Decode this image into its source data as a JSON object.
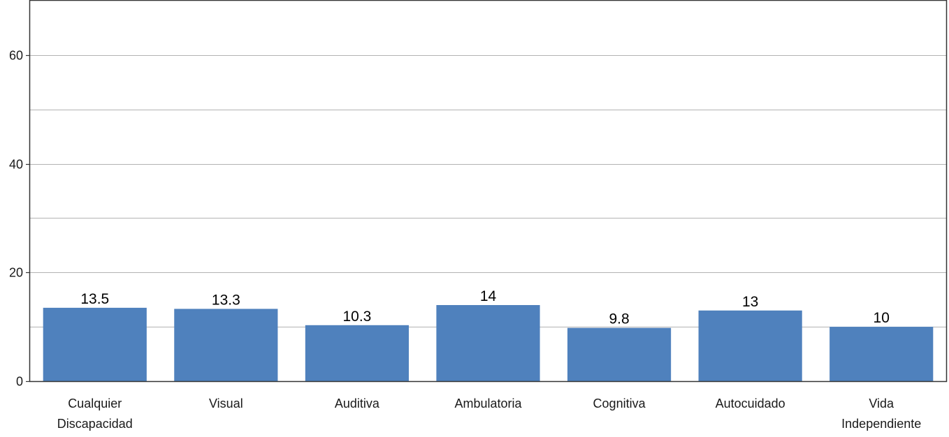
{
  "chart_data": {
    "type": "bar",
    "title": "",
    "xlabel": "",
    "ylabel": "",
    "ylim": [
      0,
      70
    ],
    "yticks": [
      0,
      20,
      40,
      60
    ],
    "gridlines": [
      10,
      20,
      30,
      40,
      50,
      60
    ],
    "grid": "horizontal",
    "categories": [
      [
        "Cualquier",
        "Discapacidad"
      ],
      [
        "Visual"
      ],
      [
        "Auditiva"
      ],
      [
        "Ambulatoria"
      ],
      [
        "Cognitiva"
      ],
      [
        "Autocuidado"
      ],
      [
        "Vida",
        "Independiente"
      ]
    ],
    "values": [
      13.5,
      13.3,
      10.3,
      14,
      9.8,
      13,
      10
    ],
    "value_labels": [
      "13.5",
      "13.3",
      "10.3",
      "14",
      "9.8",
      "13",
      "10"
    ],
    "colors": {
      "bar": "#4f81bd",
      "grid": "#b3b3b3",
      "axis": "#333333"
    }
  }
}
